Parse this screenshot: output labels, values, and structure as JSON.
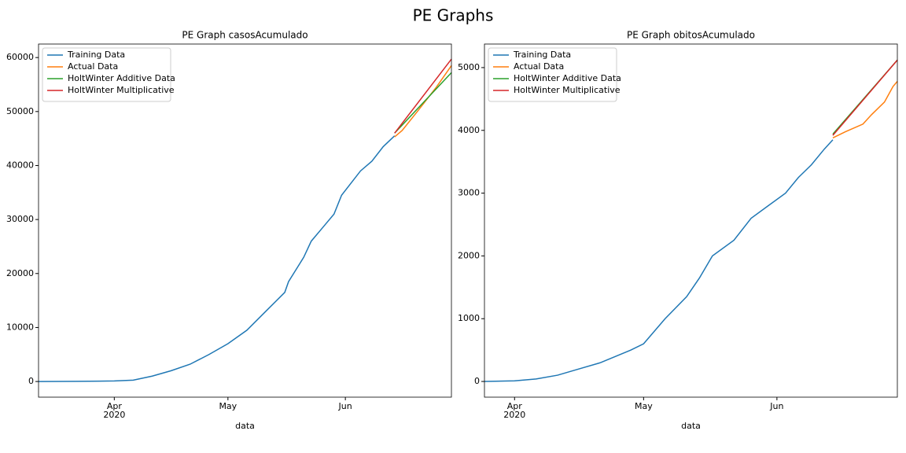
{
  "title": "PE Graphs",
  "chart_data": [
    {
      "type": "line",
      "title": "PE Graph casosAcumulado",
      "xlabel": "data",
      "x_year_label": "2020",
      "xlim": [
        0,
        109
      ],
      "xticks": [
        {
          "value": 20,
          "label": "Apr"
        },
        {
          "value": 50,
          "label": "May"
        },
        {
          "value": 81,
          "label": "Jun"
        }
      ],
      "ylim": [
        -2900,
        62500
      ],
      "yticks": [
        0,
        10000,
        20000,
        30000,
        40000,
        50000,
        60000
      ],
      "grid": false,
      "legend": "upper left",
      "series": [
        {
          "name": "Training Data",
          "color": "#1f77b4",
          "x": [
            0,
            10,
            20,
            25,
            30,
            35,
            40,
            45,
            50,
            55,
            60,
            65,
            66,
            70,
            72,
            75,
            78,
            80,
            85,
            88,
            91,
            94
          ],
          "values": [
            0,
            30,
            100,
            250,
            1000,
            2000,
            3200,
            5000,
            7000,
            9500,
            13000,
            16500,
            18500,
            23000,
            26000,
            28500,
            31000,
            34500,
            39000,
            40800,
            43500,
            45500
          ]
        },
        {
          "name": "Actual Data",
          "color": "#ff7f0e",
          "x": [
            94,
            96,
            100,
            105,
            109
          ],
          "values": [
            45300,
            46500,
            50000,
            54500,
            58500
          ]
        },
        {
          "name": "HoltWinter Additive Data",
          "color": "#2ca02c",
          "x": [
            94,
            109
          ],
          "values": [
            46000,
            57200
          ]
        },
        {
          "name": "HoltWinter Multiplicative",
          "color": "#d62728",
          "x": [
            94,
            109
          ],
          "values": [
            46000,
            59700
          ]
        }
      ]
    },
    {
      "type": "line",
      "title": "PE Graph obitosAcumulado",
      "xlabel": "data",
      "x_year_label": "2020",
      "xlim": [
        0,
        96
      ],
      "xticks": [
        {
          "value": 7,
          "label": "Apr"
        },
        {
          "value": 37,
          "label": "May"
        },
        {
          "value": 68,
          "label": "Jun"
        }
      ],
      "ylim": [
        -250,
        5375
      ],
      "yticks": [
        0,
        1000,
        2000,
        3000,
        4000,
        5000
      ],
      "grid": false,
      "legend": "upper left",
      "series": [
        {
          "name": "Training Data",
          "color": "#1f77b4",
          "x": [
            0,
            7,
            12,
            17,
            22,
            27,
            34,
            37,
            42,
            47,
            50,
            53,
            58,
            62,
            66,
            70,
            73,
            76,
            79,
            81
          ],
          "values": [
            0,
            10,
            40,
            100,
            200,
            300,
            500,
            600,
            1000,
            1350,
            1650,
            2000,
            2250,
            2600,
            2800,
            3000,
            3250,
            3450,
            3700,
            3850
          ]
        },
        {
          "name": "Actual Data",
          "color": "#ff7f0e",
          "x": [
            81,
            84,
            88,
            90,
            93,
            95,
            96
          ],
          "values": [
            3880,
            3980,
            4100,
            4250,
            4450,
            4700,
            4780
          ]
        },
        {
          "name": "HoltWinter Additive Data",
          "color": "#2ca02c",
          "x": [
            81,
            96
          ],
          "values": [
            3940,
            5120
          ]
        },
        {
          "name": "HoltWinter Multiplicative",
          "color": "#d62728",
          "x": [
            81,
            96
          ],
          "values": [
            3920,
            5120
          ]
        }
      ]
    }
  ]
}
